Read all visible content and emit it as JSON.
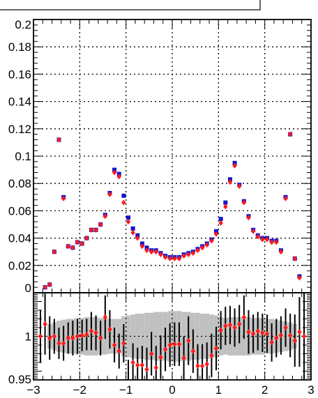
{
  "chart_data": [
    {
      "type": "scatter",
      "title": "",
      "xlabel": "",
      "ylabel": "",
      "xlim": [
        -3,
        3
      ],
      "ylim": [
        0,
        0.2
      ],
      "grid": true,
      "y_ticks": [
        "0.2",
        "0.18",
        "0.16",
        "0.14",
        "0.12",
        "0.1",
        "0.08",
        "0.06",
        "0.04",
        "0.02",
        "0"
      ],
      "y_tick_values": [
        0.2,
        0.18,
        0.16,
        0.14,
        0.12,
        0.1,
        0.08,
        0.06,
        0.04,
        0.02,
        0
      ],
      "colors": {
        "blue_series": "#1414cc",
        "red_series": "#ff1a1a",
        "grid": "#000000"
      },
      "series": [
        {
          "name": "",
          "marker": "square",
          "color": "#1414cc",
          "x": [
            -2.75,
            -2.65,
            -2.55,
            -2.45,
            -2.35,
            -2.25,
            -2.15,
            -2.05,
            -1.95,
            -1.85,
            -1.75,
            -1.65,
            -1.55,
            -1.45,
            -1.35,
            -1.25,
            -1.15,
            -1.05,
            -0.95,
            -0.85,
            -0.75,
            -0.65,
            -0.55,
            -0.45,
            -0.35,
            -0.25,
            -0.15,
            -0.05,
            0.05,
            0.15,
            0.25,
            0.35,
            0.45,
            0.55,
            0.65,
            0.75,
            0.85,
            0.95,
            1.05,
            1.15,
            1.25,
            1.35,
            1.45,
            1.55,
            1.65,
            1.75,
            1.85,
            1.95,
            2.05,
            2.15,
            2.25,
            2.35,
            2.45,
            2.55,
            2.65,
            2.75
          ],
          "y": [
            0.004,
            0.006,
            0.03,
            0.112,
            0.07,
            0.034,
            0.033,
            0.037,
            0.036,
            0.04,
            0.046,
            0.046,
            0.05,
            0.057,
            0.073,
            0.09,
            0.087,
            0.071,
            0.055,
            0.047,
            0.042,
            0.036,
            0.033,
            0.031,
            0.031,
            0.029,
            0.027,
            0.026,
            0.026,
            0.026,
            0.028,
            0.029,
            0.03,
            0.032,
            0.034,
            0.036,
            0.039,
            0.045,
            0.054,
            0.066,
            0.083,
            0.095,
            0.079,
            0.067,
            0.056,
            0.046,
            0.042,
            0.04,
            0.04,
            0.038,
            0.038,
            0.031,
            0.07,
            0.116,
            0.025,
            0.012
          ]
        },
        {
          "name": "",
          "marker": "diamond",
          "color": "#ff1a1a",
          "x": [
            -2.75,
            -2.65,
            -2.55,
            -2.45,
            -2.35,
            -2.25,
            -2.15,
            -2.05,
            -1.95,
            -1.85,
            -1.75,
            -1.65,
            -1.55,
            -1.45,
            -1.35,
            -1.25,
            -1.15,
            -1.05,
            -0.95,
            -0.85,
            -0.75,
            -0.65,
            -0.55,
            -0.45,
            -0.35,
            -0.25,
            -0.15,
            -0.05,
            0.05,
            0.15,
            0.25,
            0.35,
            0.45,
            0.55,
            0.65,
            0.75,
            0.85,
            0.95,
            1.05,
            1.15,
            1.25,
            1.35,
            1.45,
            1.55,
            1.65,
            1.75,
            1.85,
            1.95,
            2.05,
            2.15,
            2.25,
            2.35,
            2.45,
            2.55,
            2.65,
            2.75
          ],
          "y": [
            0.004,
            0.006,
            0.03,
            0.112,
            0.069,
            0.034,
            0.033,
            0.037,
            0.036,
            0.04,
            0.046,
            0.046,
            0.05,
            0.056,
            0.072,
            0.088,
            0.085,
            0.066,
            0.052,
            0.044,
            0.04,
            0.034,
            0.031,
            0.03,
            0.03,
            0.028,
            0.026,
            0.025,
            0.025,
            0.025,
            0.027,
            0.028,
            0.029,
            0.031,
            0.033,
            0.035,
            0.038,
            0.043,
            0.051,
            0.063,
            0.081,
            0.093,
            0.078,
            0.066,
            0.055,
            0.045,
            0.041,
            0.039,
            0.039,
            0.037,
            0.037,
            0.03,
            0.069,
            0.116,
            0.025,
            0.011
          ]
        }
      ]
    },
    {
      "type": "scatter",
      "title": "",
      "xlabel": "",
      "ylabel": "",
      "xlim": [
        -3,
        3
      ],
      "ylim": [
        0.95,
        1.05
      ],
      "grid": true,
      "y_ticks": [
        "1",
        "0.95"
      ],
      "y_tick_values": [
        1,
        0.95
      ],
      "x_ticks": [
        "−3",
        "−2",
        "−1",
        "0",
        "1",
        "2",
        "3"
      ],
      "x_tick_values": [
        -3,
        -2,
        -1,
        0,
        1,
        2,
        3
      ],
      "band": {
        "color": "#c0c0c0",
        "x": [
          -2.65,
          -2.55,
          -2.45,
          -2.35,
          -2.25,
          -2.15,
          -2.05,
          -1.95,
          -1.85,
          -1.75,
          -1.65,
          -1.55,
          -1.45,
          -1.35,
          -1.25,
          -1.15,
          -1.05,
          -0.95,
          -0.85,
          -0.75,
          -0.65,
          -0.55,
          -0.45,
          -0.35,
          -0.25,
          -0.15,
          -0.05,
          0.05,
          0.15,
          0.25,
          0.35,
          0.45,
          0.55,
          0.65,
          0.75,
          0.85,
          0.95,
          1.05,
          1.15,
          1.25,
          1.35,
          1.45,
          1.55,
          1.65,
          1.75,
          1.85,
          1.95,
          2.05,
          2.15,
          2.25,
          2.35,
          2.45,
          2.55,
          2.65
        ],
        "half_width": [
          0.014,
          0.016,
          0.018,
          0.019,
          0.02,
          0.02,
          0.021,
          0.021,
          0.022,
          0.022,
          0.022,
          0.021,
          0.021,
          0.02,
          0.02,
          0.02,
          0.023,
          0.024,
          0.025,
          0.026,
          0.026,
          0.027,
          0.027,
          0.028,
          0.028,
          0.028,
          0.029,
          0.029,
          0.029,
          0.028,
          0.028,
          0.027,
          0.027,
          0.026,
          0.026,
          0.025,
          0.024,
          0.022,
          0.021,
          0.022,
          0.022,
          0.022,
          0.022,
          0.022,
          0.021,
          0.021,
          0.021,
          0.02,
          0.02,
          0.019,
          0.018,
          0.017,
          0.016,
          0.014
        ]
      },
      "series": [
        {
          "name": "",
          "marker": "diamond",
          "color": "#ff1a1a",
          "x": [
            -2.85,
            -2.75,
            -2.65,
            -2.55,
            -2.45,
            -2.35,
            -2.25,
            -2.15,
            -2.05,
            -1.95,
            -1.85,
            -1.75,
            -1.65,
            -1.55,
            -1.45,
            -1.35,
            -1.25,
            -1.15,
            -1.05,
            -0.95,
            -0.85,
            -0.75,
            -0.65,
            -0.55,
            -0.45,
            -0.35,
            -0.25,
            -0.15,
            -0.05,
            0.05,
            0.15,
            0.25,
            0.35,
            0.45,
            0.55,
            0.65,
            0.75,
            0.85,
            0.95,
            1.05,
            1.15,
            1.25,
            1.35,
            1.45,
            1.55,
            1.65,
            1.75,
            1.85,
            1.95,
            2.05,
            2.15,
            2.25,
            2.35,
            2.45,
            2.55,
            2.65,
            2.75,
            2.85
          ],
          "y": [
            1.0,
            1.014,
            0.998,
            1.0,
            0.992,
            0.992,
            0.998,
            0.998,
            1.0,
            1.001,
            1.002,
            1.006,
            1.004,
            0.998,
            1.022,
            1.008,
            0.99,
            0.983,
            0.992,
            0.948,
            0.97,
            0.967,
            0.967,
            0.962,
            0.98,
            0.964,
            0.976,
            0.985,
            0.99,
            0.991,
            0.991,
            0.975,
            0.995,
            0.983,
            0.966,
            0.966,
            0.968,
            0.978,
            0.986,
            1.007,
            1.012,
            1.013,
            1.01,
            1.014,
            1.022,
            1.005,
            1.003,
            1.006,
            1.004,
            1.003,
            0.993,
            0.998,
            1.001,
            1.01,
            1.001,
            0.995,
            1.005,
            1.0
          ],
          "err": [
            0.03,
            0.035,
            0.025,
            0.02,
            0.018,
            0.02,
            0.018,
            0.02,
            0.02,
            0.018,
            0.018,
            0.022,
            0.02,
            0.02,
            0.025,
            0.022,
            0.02,
            0.02,
            0.022,
            0.025,
            0.022,
            0.02,
            0.022,
            0.025,
            0.025,
            0.025,
            0.025,
            0.025,
            0.025,
            0.025,
            0.025,
            0.025,
            0.028,
            0.025,
            0.025,
            0.025,
            0.025,
            0.025,
            0.025,
            0.022,
            0.022,
            0.022,
            0.022,
            0.022,
            0.025,
            0.025,
            0.022,
            0.022,
            0.022,
            0.022,
            0.022,
            0.022,
            0.022,
            0.022,
            0.025,
            0.03,
            0.04,
            0.05
          ]
        }
      ]
    }
  ]
}
